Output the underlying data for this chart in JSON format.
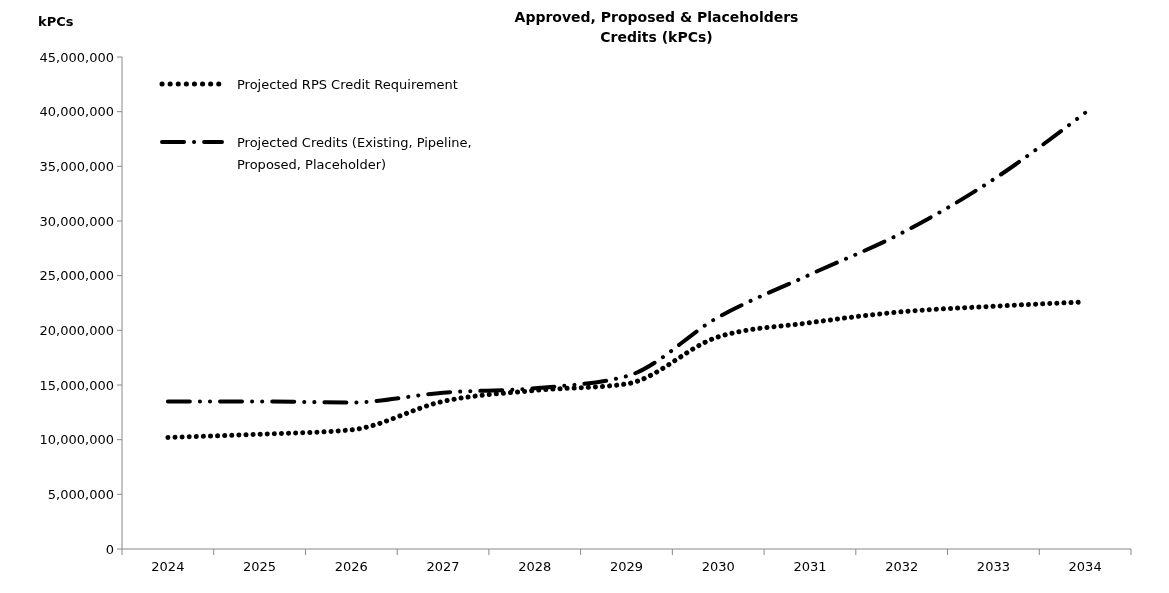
{
  "chart_data": {
    "type": "line",
    "title": "Approved, Proposed & Placeholders\nCredits (kPCs)",
    "ylabel": "kPCs",
    "categories": [
      "2024",
      "2025",
      "2026",
      "2027",
      "2028",
      "2029",
      "2030",
      "2031",
      "2032",
      "2033",
      "2034"
    ],
    "series": [
      {
        "name": "Projected RPS Credit Requirement",
        "color": "#000000",
        "line_style": "dotted",
        "values": [
          10200000,
          10500000,
          10900000,
          13500000,
          14500000,
          15100000,
          19400000,
          20700000,
          21700000,
          22200000,
          22600000
        ]
      },
      {
        "name": "Projected Credits (Existing, Pipeline, Proposed, Placeholder)",
        "color": "#000000",
        "line_style": "dashdot",
        "values": [
          13500000,
          13500000,
          13400000,
          14300000,
          14700000,
          15800000,
          21200000,
          25100000,
          28900000,
          33800000,
          39900000
        ]
      }
    ],
    "ylim": [
      0,
      45000000
    ],
    "yticks": [
      {
        "value": 0,
        "label": "0"
      },
      {
        "value": 5000000,
        "label": "5,000,000"
      },
      {
        "value": 10000000,
        "label": "10,000,000"
      },
      {
        "value": 15000000,
        "label": "15,000,000"
      },
      {
        "value": 20000000,
        "label": "20,000,000"
      },
      {
        "value": 25000000,
        "label": "25,000,000"
      },
      {
        "value": 30000000,
        "label": "30,000,000"
      },
      {
        "value": 35000000,
        "label": "35,000,000"
      },
      {
        "value": 40000000,
        "label": "40,000,000"
      },
      {
        "value": 45000000,
        "label": "45,000,000"
      }
    ],
    "grid": false,
    "legend": "top left"
  }
}
